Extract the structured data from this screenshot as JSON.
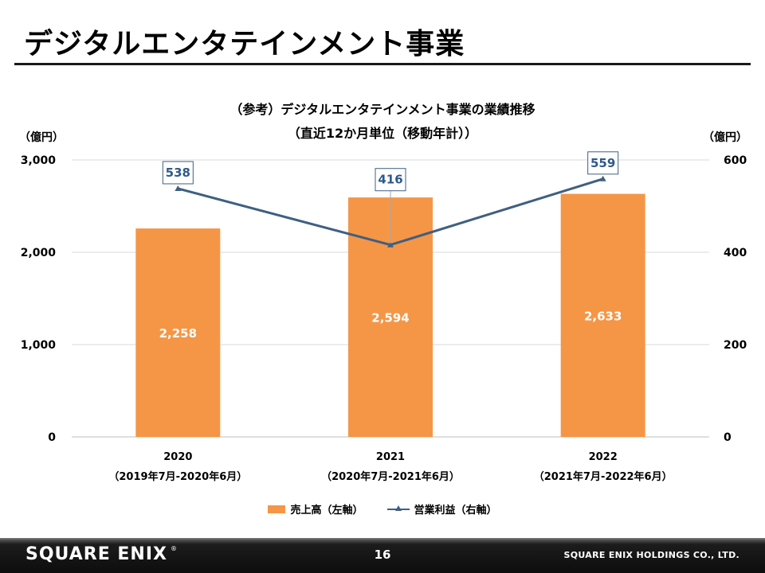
{
  "page": {
    "title": "デジタルエンタテインメント事業",
    "page_number": "16",
    "footer_logo": "SQUARE ENIX",
    "footer_logo_mark": "®",
    "company": "SQUARE ENIX HOLDINGS CO., LTD."
  },
  "chart_data": {
    "type": "bar",
    "title_line1": "（参考）デジタルエンタテインメント事業の業績推移",
    "title_line2": "（直近12か月単位（移動年計））",
    "ylabel_left": "（億円）",
    "ylabel_right": "（億円）",
    "ylim_left": [
      0,
      3000
    ],
    "ylim_right": [
      0,
      600
    ],
    "yticks_left": [
      "0",
      "1,000",
      "2,000",
      "3,000"
    ],
    "yticks_right": [
      "0",
      "200",
      "400",
      "600"
    ],
    "categories": [
      "2020",
      "2021",
      "2022"
    ],
    "category_sublabels": [
      "（2019年7月-2020年6月）",
      "（2020年7月-2021年6月）",
      "（2021年7月-2022年6月）"
    ],
    "grid": true,
    "legend_position": "bottom",
    "series": [
      {
        "name": "売上高（左軸）",
        "kind": "bar",
        "axis": "left",
        "color": "#f59646",
        "values": [
          2258,
          2594,
          2633
        ],
        "labels": [
          "2,258",
          "2,594",
          "2,633"
        ]
      },
      {
        "name": "営業利益（右軸）",
        "kind": "line",
        "axis": "right",
        "color": "#3f5f82",
        "marker": "triangle",
        "values": [
          538,
          416,
          559
        ],
        "labels": [
          "538",
          "416",
          "559"
        ]
      }
    ]
  }
}
